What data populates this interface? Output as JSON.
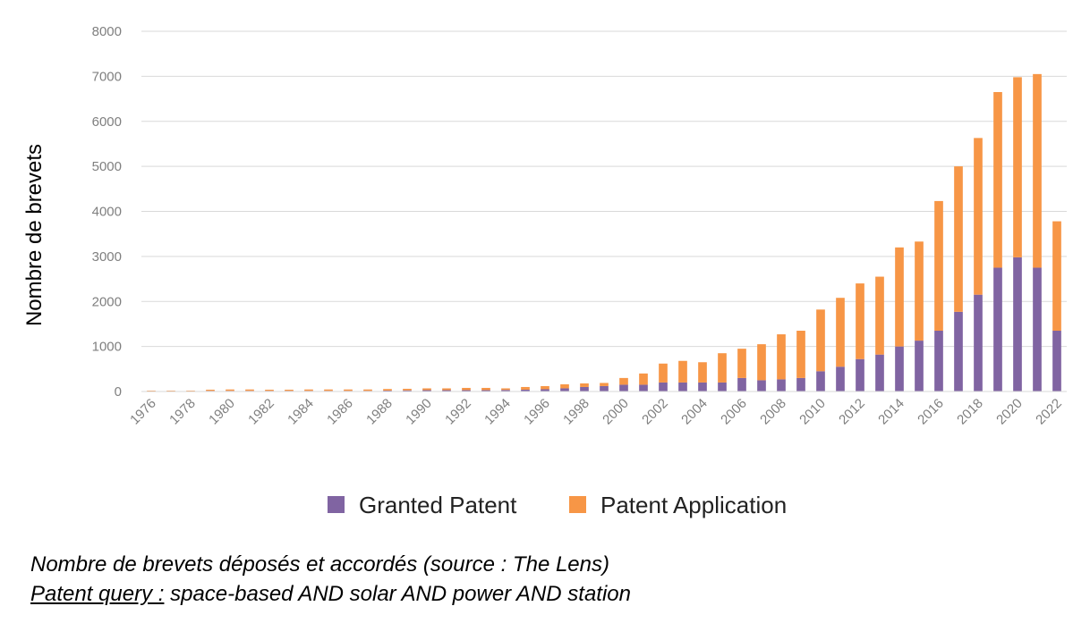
{
  "chart_data": {
    "type": "bar",
    "stacked": true,
    "categories": [
      "1976",
      "1977",
      "1978",
      "1979",
      "1980",
      "1981",
      "1982",
      "1983",
      "1984",
      "1985",
      "1986",
      "1987",
      "1988",
      "1989",
      "1990",
      "1991",
      "1992",
      "1993",
      "1994",
      "1995",
      "1996",
      "1997",
      "1998",
      "1999",
      "2000",
      "2001",
      "2002",
      "2003",
      "2004",
      "2005",
      "2006",
      "2007",
      "2008",
      "2009",
      "2010",
      "2011",
      "2012",
      "2013",
      "2014",
      "2015",
      "2016",
      "2017",
      "2018",
      "2019",
      "2020",
      "2021",
      "2022"
    ],
    "x_tick_labels": [
      "1976",
      "1978",
      "1980",
      "1982",
      "1984",
      "1986",
      "1988",
      "1990",
      "1992",
      "1994",
      "1996",
      "1998",
      "2000",
      "2002",
      "2004",
      "2006",
      "2008",
      "2010",
      "2012",
      "2014",
      "2016",
      "2018",
      "2020",
      "2022"
    ],
    "series": [
      {
        "name": "Granted Patent",
        "color": "#8064a2",
        "values": [
          5,
          5,
          5,
          15,
          15,
          15,
          15,
          15,
          15,
          15,
          15,
          15,
          20,
          25,
          30,
          30,
          30,
          30,
          35,
          40,
          50,
          70,
          100,
          120,
          150,
          150,
          200,
          200,
          200,
          200,
          300,
          250,
          270,
          300,
          450,
          550,
          720,
          820,
          1000,
          1130,
          1350,
          1770,
          2150,
          2750,
          2980,
          2750,
          1350
        ]
      },
      {
        "name": "Patent Application",
        "color": "#f79646",
        "values": [
          15,
          15,
          15,
          25,
          30,
          30,
          25,
          25,
          30,
          30,
          30,
          30,
          35,
          35,
          40,
          40,
          50,
          50,
          35,
          60,
          70,
          90,
          80,
          70,
          150,
          250,
          420,
          480,
          450,
          650,
          650,
          800,
          1000,
          1050,
          1370,
          1530,
          1680,
          1730,
          2200,
          2200,
          2880,
          3230,
          3480,
          3900,
          4000,
          4300,
          2430
        ]
      }
    ],
    "title": "",
    "xlabel": "",
    "ylabel": "Nombre de brevets",
    "ylim": [
      0,
      8000
    ],
    "y_ticks": [
      0,
      1000,
      2000,
      3000,
      4000,
      5000,
      6000,
      7000,
      8000
    ],
    "grid": true,
    "legend": "bottom-center"
  },
  "caption": {
    "line1": "Nombre de brevets déposés et accordés (source : The Lens)",
    "line2_label": "Patent query :",
    "line2_text": " space-based AND solar AND power AND station"
  }
}
